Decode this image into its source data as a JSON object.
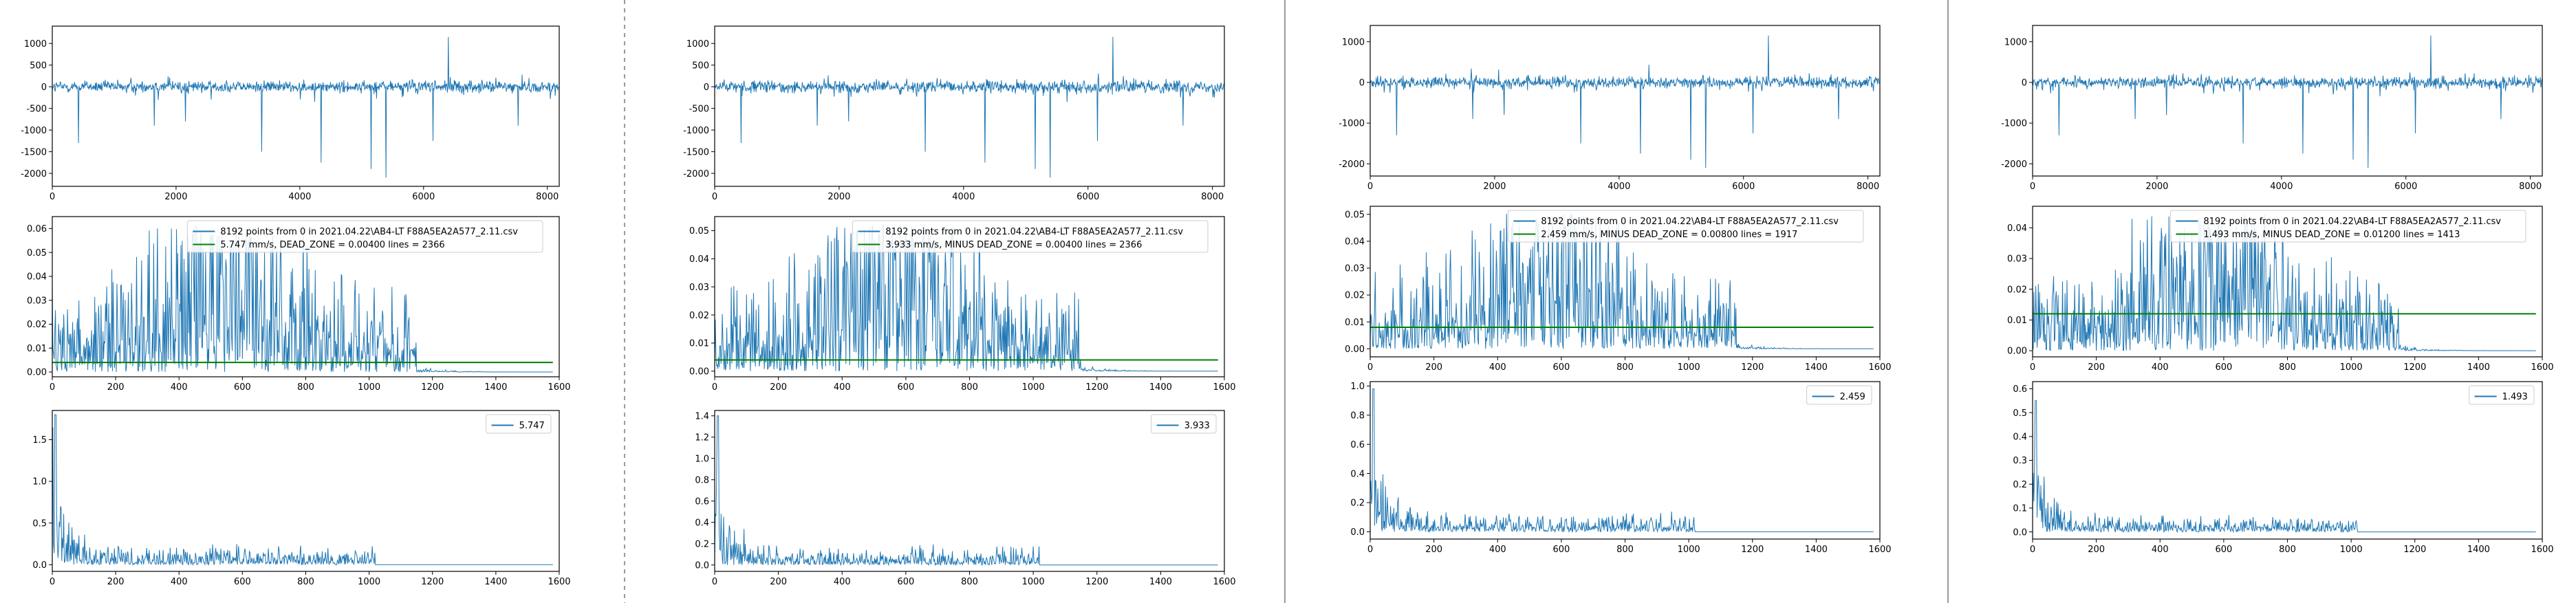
{
  "colors": {
    "signal": "#1f77b4",
    "deadzone": "#008000",
    "axes": "#000000",
    "separator": "#9a9a9a",
    "background": "#ffffff"
  },
  "panels": [
    {
      "label": "panel-1",
      "time": {
        "type": "line",
        "xlim": [
          0,
          8192
        ],
        "ylim": [
          -2300,
          1400
        ],
        "xticks": [
          "0",
          "2000",
          "4000",
          "6000",
          "8000"
        ],
        "yticks": [
          "1000",
          "500",
          "0",
          "-500",
          "-1000",
          "-1500",
          "-2000"
        ],
        "spikes": [
          {
            "x": 420,
            "y": -1300
          },
          {
            "x": 1650,
            "y": -900
          },
          {
            "x": 2150,
            "y": -800
          },
          {
            "x": 3380,
            "y": -1500
          },
          {
            "x": 4340,
            "y": -1750
          },
          {
            "x": 5150,
            "y": -1900
          },
          {
            "x": 5390,
            "y": -2100
          },
          {
            "x": 6150,
            "y": -1250
          },
          {
            "x": 6400,
            "y": 1150
          },
          {
            "x": 7530,
            "y": -900
          }
        ]
      },
      "spectrum": {
        "type": "line",
        "xlim": [
          0,
          1600
        ],
        "ylim": [
          -0.002,
          0.065
        ],
        "xticks": [
          "0",
          "200",
          "400",
          "600",
          "800",
          "1000",
          "1200",
          "1400",
          "1600"
        ],
        "yticks": [
          "0.06",
          "0.05",
          "0.04",
          "0.03",
          "0.02",
          "0.01",
          "0.00"
        ],
        "dead_zone": 0.004,
        "legend": [
          "8192 points from 0  in  2021.04.22\\AB4-LT F88A5EA2A577_2.11.csv",
          "5.747 mm/s,  DEAD_ZONE = 0.00400     lines = 2366"
        ]
      },
      "filtered": {
        "type": "line",
        "xlim": [
          0,
          1600
        ],
        "ylim": [
          -0.08,
          1.85
        ],
        "xticks": [
          "0",
          "200",
          "400",
          "600",
          "800",
          "1000",
          "1200",
          "1400",
          "1600"
        ],
        "yticks": [
          "1.5",
          "1.0",
          "0.5",
          "0.0"
        ],
        "peak": 1.8,
        "legend": [
          "5.747"
        ]
      }
    },
    {
      "label": "panel-2",
      "time": {
        "type": "line",
        "xlim": [
          0,
          8192
        ],
        "ylim": [
          -2300,
          1400
        ],
        "xticks": [
          "0",
          "2000",
          "4000",
          "6000",
          "8000"
        ],
        "yticks": [
          "1000",
          "500",
          "0",
          "-500",
          "-1000",
          "-1500",
          "-2000"
        ],
        "spikes": [
          {
            "x": 420,
            "y": -1300
          },
          {
            "x": 1650,
            "y": -900
          },
          {
            "x": 2150,
            "y": -800
          },
          {
            "x": 3380,
            "y": -1500
          },
          {
            "x": 4340,
            "y": -1750
          },
          {
            "x": 5150,
            "y": -1900
          },
          {
            "x": 5390,
            "y": -2100
          },
          {
            "x": 6150,
            "y": -1250
          },
          {
            "x": 6400,
            "y": 1150
          },
          {
            "x": 7530,
            "y": -900
          }
        ]
      },
      "spectrum": {
        "type": "line",
        "xlim": [
          0,
          1600
        ],
        "ylim": [
          -0.002,
          0.055
        ],
        "xticks": [
          "0",
          "200",
          "400",
          "600",
          "800",
          "1000",
          "1200",
          "1400",
          "1600"
        ],
        "yticks": [
          "0.05",
          "0.04",
          "0.03",
          "0.02",
          "0.01",
          "0.00"
        ],
        "dead_zone": 0.004,
        "legend": [
          "8192 points from 0  in  2021.04.22\\AB4-LT F88A5EA2A577_2.11.csv",
          "3.933 mm/s,  MINUS  DEAD_ZONE = 0.00400     lines = 2366"
        ]
      },
      "filtered": {
        "type": "line",
        "xlim": [
          0,
          1600
        ],
        "ylim": [
          -0.06,
          1.45
        ],
        "xticks": [
          "0",
          "200",
          "400",
          "600",
          "800",
          "1000",
          "1200",
          "1400",
          "1600"
        ],
        "yticks": [
          "1.4",
          "1.2",
          "1.0",
          "0.8",
          "0.6",
          "0.4",
          "0.2",
          "0.0"
        ],
        "peak": 1.4,
        "legend": [
          "3.933"
        ]
      }
    },
    {
      "label": "panel-3",
      "time": {
        "type": "line",
        "xlim": [
          0,
          8192
        ],
        "ylim": [
          -2300,
          1400
        ],
        "xticks": [
          "0",
          "2000",
          "4000",
          "6000",
          "8000"
        ],
        "yticks": [
          "1000",
          "0",
          "-1000",
          "-2000"
        ],
        "spikes": [
          {
            "x": 420,
            "y": -1300
          },
          {
            "x": 1650,
            "y": -900
          },
          {
            "x": 2150,
            "y": -800
          },
          {
            "x": 3380,
            "y": -1500
          },
          {
            "x": 4340,
            "y": -1750
          },
          {
            "x": 5150,
            "y": -1900
          },
          {
            "x": 5390,
            "y": -2100
          },
          {
            "x": 6150,
            "y": -1250
          },
          {
            "x": 6400,
            "y": 1150
          },
          {
            "x": 7530,
            "y": -900
          }
        ]
      },
      "spectrum": {
        "type": "line",
        "xlim": [
          0,
          1600
        ],
        "ylim": [
          -0.003,
          0.053
        ],
        "xticks": [
          "0",
          "200",
          "400",
          "600",
          "800",
          "1000",
          "1200",
          "1400",
          "1600"
        ],
        "yticks": [
          "0.05",
          "0.04",
          "0.03",
          "0.02",
          "0.01",
          "0.00"
        ],
        "dead_zone": 0.008,
        "legend": [
          "8192 points from 0  in  2021.04.22\\AB4-LT F88A5EA2A577_2.11.csv",
          "2.459 mm/s,  MINUS  DEAD_ZONE = 0.00800     lines = 1917"
        ]
      },
      "filtered": {
        "type": "line",
        "xlim": [
          0,
          1600
        ],
        "ylim": [
          -0.05,
          1.03
        ],
        "xticks": [
          "0",
          "200",
          "400",
          "600",
          "800",
          "1000",
          "1200",
          "1400",
          "1600"
        ],
        "yticks": [
          "1.0",
          "0.8",
          "0.6",
          "0.4",
          "0.2",
          "0.0"
        ],
        "peak": 0.98,
        "legend": [
          "2.459"
        ]
      }
    },
    {
      "label": "panel-4",
      "time": {
        "type": "line",
        "xlim": [
          0,
          8192
        ],
        "ylim": [
          -2300,
          1400
        ],
        "xticks": [
          "0",
          "2000",
          "4000",
          "6000",
          "8000"
        ],
        "yticks": [
          "1000",
          "0",
          "-1000",
          "-2000"
        ],
        "spikes": [
          {
            "x": 420,
            "y": -1300
          },
          {
            "x": 1650,
            "y": -900
          },
          {
            "x": 2150,
            "y": -800
          },
          {
            "x": 3380,
            "y": -1500
          },
          {
            "x": 4340,
            "y": -1750
          },
          {
            "x": 5150,
            "y": -1900
          },
          {
            "x": 5390,
            "y": -2100
          },
          {
            "x": 6150,
            "y": -1250
          },
          {
            "x": 6400,
            "y": 1150
          },
          {
            "x": 7530,
            "y": -900
          }
        ]
      },
      "spectrum": {
        "type": "line",
        "xlim": [
          0,
          1600
        ],
        "ylim": [
          -0.002,
          0.047
        ],
        "xticks": [
          "0",
          "200",
          "400",
          "600",
          "800",
          "1000",
          "1200",
          "1400",
          "1600"
        ],
        "yticks": [
          "0.04",
          "0.03",
          "0.02",
          "0.01",
          "0.00"
        ],
        "dead_zone": 0.012,
        "legend": [
          "8192 points from 0  in  2021.04.22\\AB4-LT F88A5EA2A577_2.11.csv",
          "1.493 mm/s,  MINUS  DEAD_ZONE = 0.01200     lines = 1413"
        ]
      },
      "filtered": {
        "type": "line",
        "xlim": [
          0,
          1600
        ],
        "ylim": [
          -0.03,
          0.63
        ],
        "xticks": [
          "0",
          "200",
          "400",
          "600",
          "800",
          "1000",
          "1200",
          "1400",
          "1600"
        ],
        "yticks": [
          "0.6",
          "0.5",
          "0.4",
          "0.3",
          "0.2",
          "0.1",
          "0.0"
        ],
        "peak": 0.55,
        "legend": [
          "1.493"
        ]
      }
    }
  ],
  "chart_data": [
    {
      "type": "line",
      "panel": 1,
      "plot": "time",
      "xlim": [
        0,
        8192
      ],
      "ylim": [
        -2300,
        1400
      ],
      "series_count": 1
    },
    {
      "type": "line",
      "panel": 1,
      "plot": "spectrum",
      "xlim": [
        0,
        1600
      ],
      "ylim": [
        0,
        0.065
      ],
      "dead_zone": 0.004,
      "lines": 2366,
      "rms": 5.747
    },
    {
      "type": "line",
      "panel": 1,
      "plot": "filtered",
      "xlim": [
        0,
        1600
      ],
      "ylim": [
        0,
        1.85
      ],
      "peak": 1.8
    },
    {
      "type": "line",
      "panel": 2,
      "plot": "time",
      "xlim": [
        0,
        8192
      ],
      "ylim": [
        -2300,
        1400
      ],
      "series_count": 1
    },
    {
      "type": "line",
      "panel": 2,
      "plot": "spectrum",
      "xlim": [
        0,
        1600
      ],
      "ylim": [
        0,
        0.055
      ],
      "dead_zone": 0.004,
      "lines": 2366,
      "rms": 3.933
    },
    {
      "type": "line",
      "panel": 2,
      "plot": "filtered",
      "xlim": [
        0,
        1600
      ],
      "ylim": [
        0,
        1.45
      ],
      "peak": 1.4
    },
    {
      "type": "line",
      "panel": 3,
      "plot": "time",
      "xlim": [
        0,
        8192
      ],
      "ylim": [
        -2300,
        1400
      ],
      "series_count": 1
    },
    {
      "type": "line",
      "panel": 3,
      "plot": "spectrum",
      "xlim": [
        0,
        1600
      ],
      "ylim": [
        0,
        0.053
      ],
      "dead_zone": 0.008,
      "lines": 1917,
      "rms": 2.459
    },
    {
      "type": "line",
      "panel": 3,
      "plot": "filtered",
      "xlim": [
        0,
        1600
      ],
      "ylim": [
        0,
        1.03
      ],
      "peak": 0.98
    },
    {
      "type": "line",
      "panel": 4,
      "plot": "time",
      "xlim": [
        0,
        8192
      ],
      "ylim": [
        -2300,
        1400
      ],
      "series_count": 1
    },
    {
      "type": "line",
      "panel": 4,
      "plot": "spectrum",
      "xlim": [
        0,
        1600
      ],
      "ylim": [
        0,
        0.047
      ],
      "dead_zone": 0.012,
      "lines": 1413,
      "rms": 1.493
    },
    {
      "type": "line",
      "panel": 4,
      "plot": "filtered",
      "xlim": [
        0,
        1600
      ],
      "ylim": [
        0,
        0.63
      ],
      "peak": 0.55
    }
  ]
}
